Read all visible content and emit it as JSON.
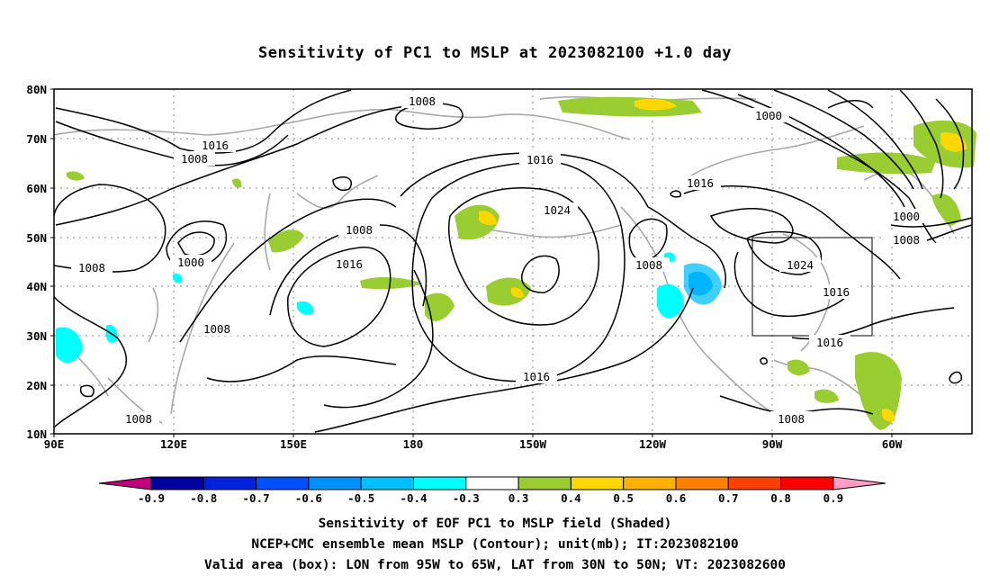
{
  "title": "Sensitivity of PC1 to MSLP at 2023082100 +1.0 day",
  "lat_labels": [
    "80N",
    "70N",
    "60N",
    "50N",
    "40N",
    "30N",
    "20N",
    "10N"
  ],
  "lon_labels": [
    "90E",
    "120E",
    "150E",
    "180",
    "150W",
    "120W",
    "90W",
    "60W"
  ],
  "contour_labels": [
    "1008",
    "1016",
    "1008",
    "1008",
    "1000",
    "1008",
    "1008",
    "1008",
    "1016",
    "1016",
    "1024",
    "1016",
    "1008",
    "1000",
    "1016",
    "1024",
    "1016",
    "1016",
    "1000",
    "1008",
    "1008"
  ],
  "colorbar": {
    "labels": [
      "-0.9",
      "-0.8",
      "-0.7",
      "-0.6",
      "-0.5",
      "-0.4",
      "-0.3",
      "0.3",
      "0.4",
      "0.5",
      "0.6",
      "0.7",
      "0.8",
      "0.9"
    ],
    "colors": [
      "#c0007a",
      "#0000a0",
      "#0022e0",
      "#0050ff",
      "#0090ff",
      "#00c0ff",
      "#00ffff",
      "#ffffff",
      "#9acd32",
      "#ffd700",
      "#ffb000",
      "#ff8000",
      "#ff4000",
      "#ff0000",
      "#ff9ec4"
    ]
  },
  "captions": {
    "line1": "Sensitivity of EOF PC1 to MSLP field (Shaded)",
    "line2": "NCEP+CMC ensemble mean MSLP (Contour); unit(mb); IT:2023082100",
    "line3": "Valid area (box): LON from 95W to 65W, LAT from 30N to 50N; VT: 2023082600"
  }
}
